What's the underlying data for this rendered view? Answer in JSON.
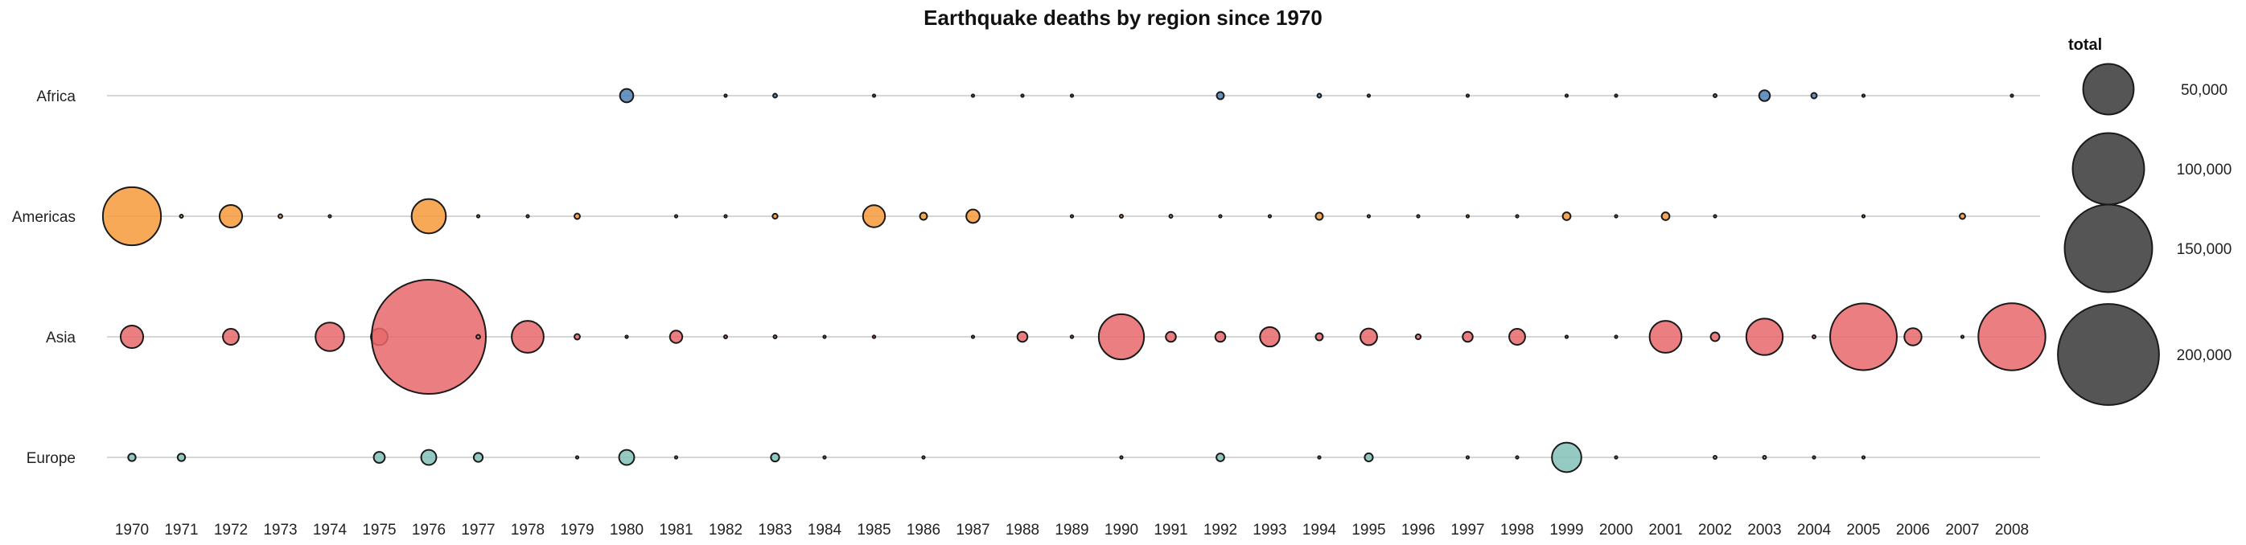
{
  "chart_data": {
    "type": "scatter",
    "title": "Earthquake deaths by region since 1970",
    "xlabel": "",
    "ylabel": "",
    "x": [
      1970,
      1971,
      1972,
      1973,
      1974,
      1975,
      1976,
      1977,
      1978,
      1979,
      1980,
      1981,
      1982,
      1983,
      1984,
      1985,
      1986,
      1987,
      1988,
      1989,
      1990,
      1991,
      1992,
      1993,
      1994,
      1995,
      1996,
      1997,
      1998,
      1999,
      2000,
      2001,
      2002,
      2003,
      2004,
      2005,
      2006,
      2007,
      2008
    ],
    "categories": [
      "Africa",
      "Americas",
      "Asia",
      "Europe"
    ],
    "colors": {
      "Africa": "#4f81b5",
      "Americas": "#f79a3a",
      "Asia": "#e8676b",
      "Europe": "#82c1b7"
    },
    "grid": true,
    "size_legend": {
      "title": "total",
      "values": [
        50000,
        100000,
        150000,
        200000
      ],
      "labels": [
        "50,000",
        "100,000",
        "150,000",
        "200,000"
      ],
      "color": "#555555"
    },
    "series": [
      {
        "name": "Africa",
        "values": [
          0,
          0,
          0,
          0,
          0,
          0,
          0,
          0,
          0,
          0,
          3500,
          0,
          30,
          300,
          0,
          10,
          0,
          5,
          20,
          20,
          0,
          0,
          1000,
          0,
          300,
          5,
          0,
          2,
          0,
          10,
          1,
          0,
          200,
          2300,
          600,
          10,
          0,
          0,
          60
        ]
      },
      {
        "name": "Americas",
        "values": [
          66000,
          200,
          10000,
          300,
          5,
          0,
          23000,
          100,
          5,
          600,
          0,
          10,
          40,
          500,
          0,
          9500,
          1000,
          3500,
          0,
          25,
          200,
          200,
          60,
          2,
          1000,
          10,
          20,
          30,
          5,
          1200,
          10,
          1200,
          5,
          0,
          0,
          5,
          0,
          600,
          0
        ]
      },
      {
        "name": "Asia",
        "values": [
          10000,
          0,
          5000,
          0,
          16000,
          5500,
          255000,
          300,
          20000,
          600,
          100,
          3000,
          200,
          200,
          10,
          150,
          0,
          5,
          2000,
          150,
          40000,
          2000,
          2000,
          7500,
          1000,
          5500,
          500,
          2000,
          5000,
          60,
          100,
          20000,
          1500,
          26000,
          200,
          87000,
          5800,
          2,
          88000
        ]
      },
      {
        "name": "Europe",
        "values": [
          1100,
          1100,
          0,
          0,
          0,
          2400,
          4500,
          1600,
          0,
          20,
          4500,
          20,
          0,
          1350,
          5,
          0,
          1,
          0,
          0,
          0,
          5,
          0,
          1200,
          0,
          2,
          1300,
          0,
          10,
          20,
          17000,
          20,
          0,
          200,
          200,
          10,
          20,
          0,
          0,
          0
        ]
      }
    ]
  }
}
